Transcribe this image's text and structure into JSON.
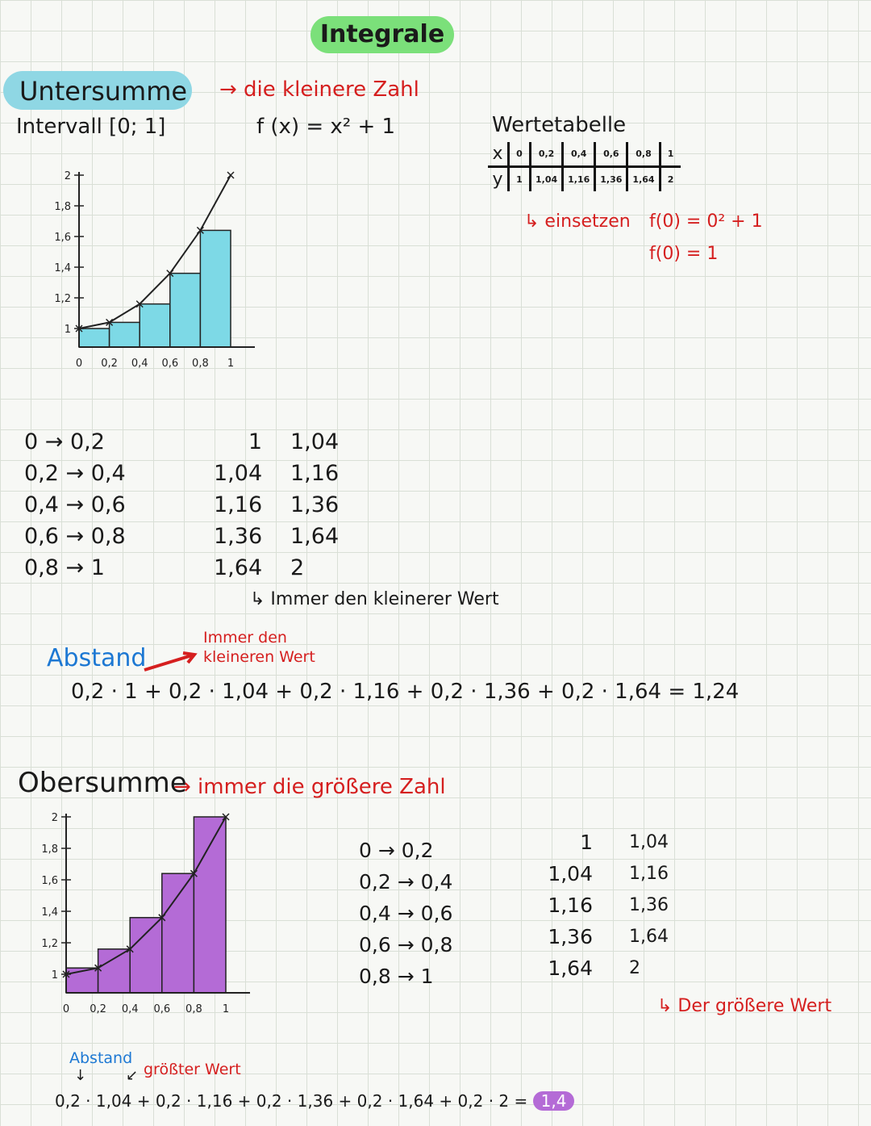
{
  "title": "Integrale",
  "untersumme": {
    "heading": "Untersumme",
    "note": "→ die kleinere Zahl",
    "interval": "Intervall  [0; 1]",
    "function": "f (x) = x² + 1",
    "graph": {
      "y_ticks": [
        "2",
        "1,8",
        "1,6",
        "1,4",
        "1,2",
        "1"
      ],
      "x_ticks": [
        "0",
        "0,2",
        "0,4",
        "0,6",
        "0,8",
        "1"
      ],
      "bar_heights": [
        1,
        1.04,
        1.16,
        1.36,
        1.64
      ],
      "curve_points": [
        1,
        1.04,
        1.16,
        1.36,
        1.64,
        2
      ],
      "bar_color": "#7dd9e6"
    },
    "intervals": [
      "0 → 0,2",
      "0,2 → 0,4",
      "0,4 → 0,6",
      "0,6 → 0,8",
      "0,8 → 1"
    ],
    "left_values": [
      "1",
      "1,04",
      "1,16",
      "1,36",
      "1,64"
    ],
    "right_values": [
      "1,04",
      "1,16",
      "1,36",
      "1,64",
      "2"
    ],
    "marker_note": "↳ Immer den kleinerer Wert",
    "abstand_label": "Abstand",
    "abstand_note_line1": "Immer den",
    "abstand_note_line2": "kleineren Wert",
    "sum": "0,2 · 1 + 0,2 · 1,04 + 0,2 · 1,16 + 0,2 · 1,36 + 0,2 · 1,64 = 1,24"
  },
  "wertetabelle": {
    "heading": "Wertetabelle",
    "x_label": "x",
    "y_label": "y",
    "x_values": [
      "0",
      "0,2",
      "0,4",
      "0,6",
      "0,8",
      "1"
    ],
    "y_values": [
      "1",
      "1,04",
      "1,16",
      "1,36",
      "1,64",
      "2"
    ],
    "note": "↳ einsetzen",
    "calc1": "f(0) = 0² + 1",
    "calc2": "f(0) = 1"
  },
  "obersumme": {
    "heading": "Obersumme",
    "note": "→ immer  die  größere  Zahl",
    "graph": {
      "y_ticks": [
        "2",
        "1,8",
        "1,6",
        "1,4",
        "1,2",
        "1"
      ],
      "x_ticks": [
        "0",
        "0,2",
        "0,4",
        "0,6",
        "0,8",
        "1"
      ],
      "bar_heights": [
        1.04,
        1.16,
        1.36,
        1.64,
        2
      ],
      "curve_points": [
        1,
        1.04,
        1.16,
        1.36,
        1.64,
        2
      ],
      "bar_color": "#b46bd6"
    },
    "intervals": [
      "0 → 0,2",
      "0,2 → 0,4",
      "0,4 → 0,6",
      "0,6 → 0,8",
      "0,8 → 1"
    ],
    "left_values": [
      "1",
      "1,04",
      "1,16",
      "1,36",
      "1,64"
    ],
    "right_values": [
      "1,04",
      "1,16",
      "1,36",
      "1,64",
      "2"
    ],
    "marker_note": "↳ Der größere Wert",
    "abstand_label": "Abstand",
    "groesster_note": "größter Wert",
    "sum_prefix": "0,2 · 1,04 + 0,2 · 1,16 + 0,2 · 1,36 + 0,2 · 1,64 + 0,2 · 2 =",
    "sum_result": "1,4"
  }
}
